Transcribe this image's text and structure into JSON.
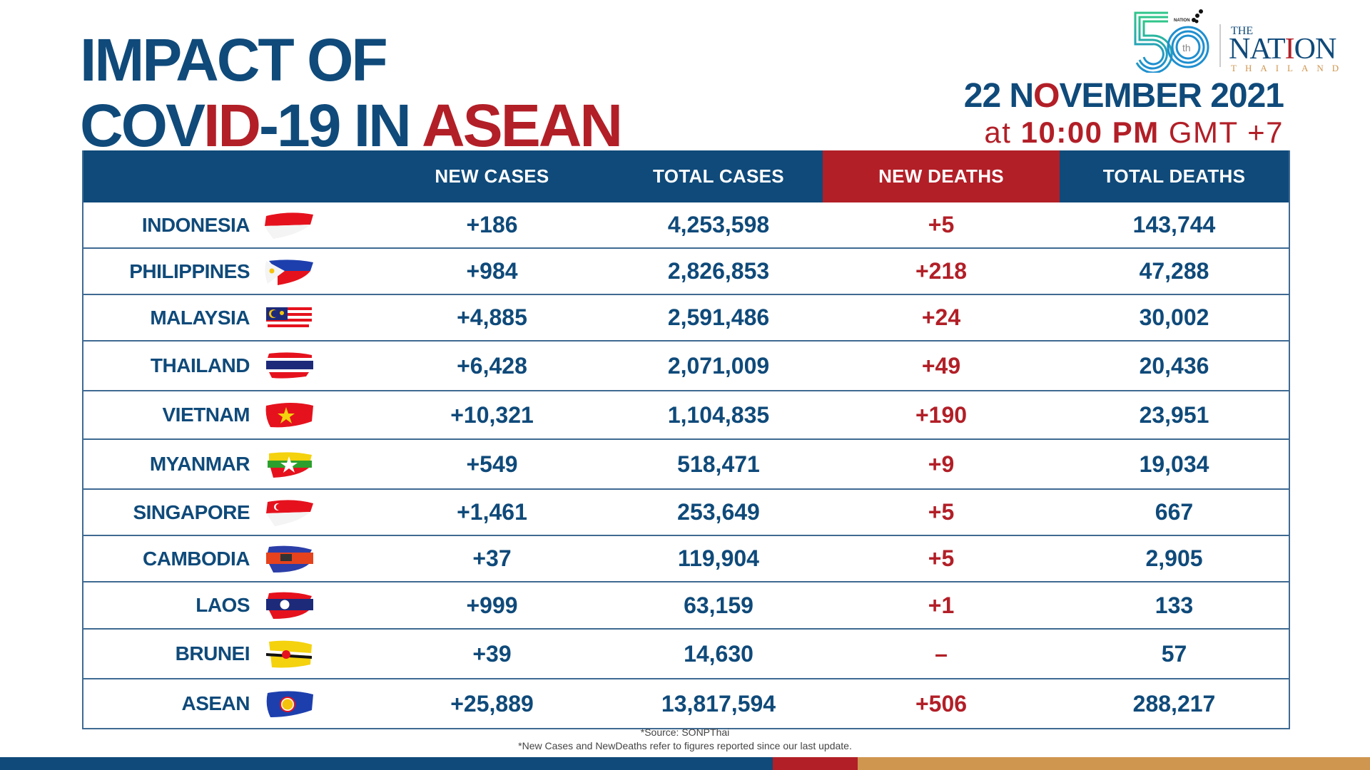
{
  "title": {
    "line1": "IMPACT OF",
    "line2_part1": "COV",
    "line2_red": "ID",
    "line2_part2": "-19 IN ",
    "line2_red2": "ASEAN"
  },
  "logo": {
    "anniversary": "50",
    "anniversary_suffix": "th",
    "group_label": "NATION GROUP",
    "brand_the": "THE",
    "brand_name_a": "NAT",
    "brand_name_i": "I",
    "brand_name_b": "ON",
    "brand_sub": "THAILAND"
  },
  "date": {
    "day": "22 N",
    "month_red": "O",
    "rest": "VEMBER 2021",
    "at": "at ",
    "time": "10:00 PM",
    "tz": " GMT +7"
  },
  "table": {
    "headers": [
      "",
      "NEW CASES",
      "TOTAL CASES",
      "NEW DEATHS",
      "TOTAL DEATHS"
    ],
    "rows": [
      {
        "country": "INDONESIA",
        "flag": "indonesia-flag-icon",
        "new_cases": "+186",
        "total_cases": "4,253,598",
        "new_deaths": "+5",
        "total_deaths": "143,744"
      },
      {
        "country": "PHILIPPINES",
        "flag": "philippines-flag-icon",
        "new_cases": "+984",
        "total_cases": "2,826,853",
        "new_deaths": "+218",
        "total_deaths": "47,288"
      },
      {
        "country": "MALAYSIA",
        "flag": "malaysia-flag-icon",
        "new_cases": "+4,885",
        "total_cases": "2,591,486",
        "new_deaths": "+24",
        "total_deaths": "30,002"
      },
      {
        "country": "THAILAND",
        "flag": "thailand-flag-icon",
        "new_cases": "+6,428",
        "total_cases": "2,071,009",
        "new_deaths": "+49",
        "total_deaths": "20,436"
      },
      {
        "country": "VIETNAM",
        "flag": "vietnam-flag-icon",
        "new_cases": "+10,321",
        "total_cases": "1,104,835",
        "new_deaths": "+190",
        "total_deaths": "23,951"
      },
      {
        "country": "MYANMAR",
        "flag": "myanmar-flag-icon",
        "new_cases": "+549",
        "total_cases": "518,471",
        "new_deaths": "+9",
        "total_deaths": "19,034"
      },
      {
        "country": "SINGAPORE",
        "flag": "singapore-flag-icon",
        "new_cases": "+1,461",
        "total_cases": "253,649",
        "new_deaths": "+5",
        "total_deaths": "667"
      },
      {
        "country": "CAMBODIA",
        "flag": "cambodia-flag-icon",
        "new_cases": "+37",
        "total_cases": "119,904",
        "new_deaths": "+5",
        "total_deaths": "2,905"
      },
      {
        "country": "LAOS",
        "flag": "laos-flag-icon",
        "new_cases": "+999",
        "total_cases": "63,159",
        "new_deaths": "+1",
        "total_deaths": "133"
      },
      {
        "country": "BRUNEI",
        "flag": "brunei-flag-icon",
        "new_cases": "+39",
        "total_cases": "14,630",
        "new_deaths": "–",
        "total_deaths": "57"
      },
      {
        "country": "ASEAN",
        "flag": "asean-flag-icon",
        "new_cases": "+25,889",
        "total_cases": "13,817,594",
        "new_deaths": "+506",
        "total_deaths": "288,217"
      }
    ]
  },
  "notes": {
    "source": "*Source: SONPThai",
    "footnote": "*New Cases and NewDeaths refer to figures reported since our last update."
  },
  "colors": {
    "navy": "#0f4a7a",
    "red": "#b21f27",
    "tan": "#cf9650",
    "teal": "#1aa9a0"
  }
}
